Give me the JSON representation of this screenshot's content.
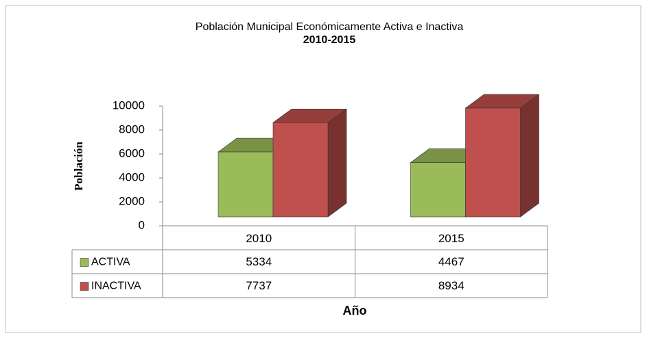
{
  "chart_data": {
    "type": "bar3d",
    "title": "Población Municipal Económicamente Activa e Inactiva",
    "subtitle": "2010-2015",
    "y_label": "Población",
    "x_label": "Año",
    "categories": [
      "2010",
      "2015"
    ],
    "series": [
      {
        "name": "ACTIVA",
        "color": "#9bbb59",
        "values": [
          5334,
          4467
        ]
      },
      {
        "name": "INACTIVA",
        "color": "#c0504d",
        "values": [
          7737,
          8934
        ]
      }
    ],
    "ylim": [
      0,
      10000
    ],
    "yticks": [
      0,
      2000,
      4000,
      6000,
      8000,
      10000
    ],
    "data_table": true
  }
}
